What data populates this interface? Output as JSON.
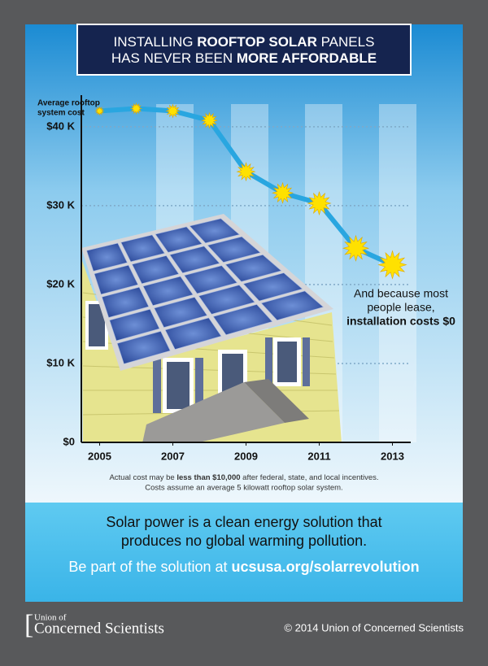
{
  "header": {
    "title": [
      "INSTALLING ",
      "ROOFTOP SOLAR",
      " PANELS",
      "HAS NEVER BEEN ",
      "MORE AFFORDABLE"
    ]
  },
  "chart_data": {
    "type": "line",
    "y_label": [
      "Average rooftop",
      "system cost"
    ],
    "x": [
      2005,
      2006,
      2007,
      2008,
      2009,
      2010,
      2011,
      2012,
      2013
    ],
    "values": [
      42,
      42.3,
      42,
      40.8,
      34.3,
      31.6,
      30.3,
      24.6,
      22.5
    ],
    "color": "#29a6e0",
    "marker_color": "#ffe100",
    "xlim": [
      2004.5,
      2013.5
    ],
    "xticks": [
      2005,
      2007,
      2009,
      2011,
      2013
    ],
    "ylim": [
      0,
      44
    ],
    "yticks": [
      {
        "value": 0,
        "label": "$0"
      },
      {
        "value": 10,
        "label": "$10 K"
      },
      {
        "value": 20,
        "label": "$20 K"
      },
      {
        "value": 30,
        "label": "$30 K"
      },
      {
        "value": 40,
        "label": "$40 K"
      }
    ],
    "grid": true,
    "annotation": [
      "And because most",
      "people lease,",
      "installation costs $0"
    ],
    "notes": [
      "Actual cost may be ",
      "less than $10,000",
      " after federal, state, and local incentives.",
      "Costs assume an average 5 kilowatt rooftop solar system."
    ]
  },
  "message": {
    "lines": [
      "Solar power is a clean energy solution that",
      "produces no global warming pollution."
    ],
    "cta": [
      "Be part of the solution at ",
      "ucsusa.org/solarrevolution"
    ]
  },
  "footer": {
    "logo": [
      "Union of",
      "Concerned Scientists"
    ],
    "copyright": "© 2014 Union of Concerned Scientists"
  }
}
